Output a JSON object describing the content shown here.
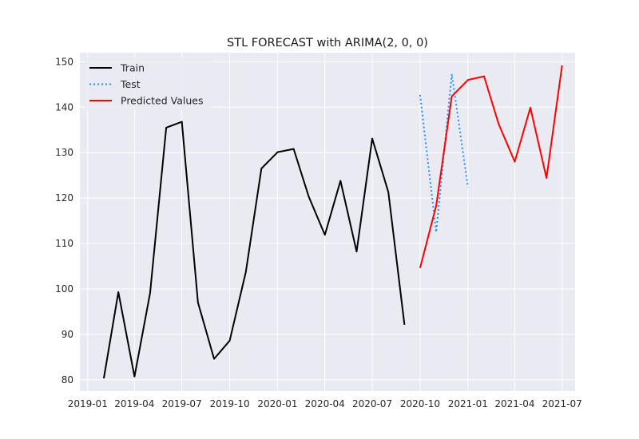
{
  "chart_data": {
    "type": "line",
    "title": "STL FORECAST with ARIMA(2, 0, 0)",
    "xlabel": "",
    "ylabel": "",
    "ylim": [
      77.5,
      152
    ],
    "xlim": [
      "2018-12-17",
      "2021-07-26"
    ],
    "grid": true,
    "legend_position": "top-left",
    "x_ticks": [
      "2019-01",
      "2019-04",
      "2019-07",
      "2019-10",
      "2020-01",
      "2020-04",
      "2020-07",
      "2020-10",
      "2021-01",
      "2021-04",
      "2021-07"
    ],
    "y_ticks": [
      80,
      90,
      100,
      110,
      120,
      130,
      140,
      150
    ],
    "series": [
      {
        "name": "Train",
        "color": "#000000",
        "style": "solid",
        "x": [
          "2019-02-01",
          "2019-03-01",
          "2019-04-01",
          "2019-05-01",
          "2019-06-01",
          "2019-07-01",
          "2019-08-01",
          "2019-09-01",
          "2019-10-01",
          "2019-11-01",
          "2019-12-01",
          "2020-01-01",
          "2020-02-01",
          "2020-03-01",
          "2020-04-01",
          "2020-05-01",
          "2020-06-01",
          "2020-07-01",
          "2020-08-01",
          "2020-09-01"
        ],
        "values": [
          80.3,
          99.3,
          80.7,
          99.1,
          135.5,
          136.8,
          97.0,
          84.6,
          88.6,
          103.7,
          126.5,
          130.1,
          130.8,
          120.3,
          111.9,
          123.8,
          108.2,
          133.1,
          121.3,
          92.1
        ]
      },
      {
        "name": "Test",
        "color": "#1f8fff",
        "style": "dotted",
        "x": [
          "2020-10-01",
          "2020-11-01",
          "2020-12-01",
          "2021-01-01"
        ],
        "values": [
          142.7,
          112.5,
          147.3,
          122.4
        ]
      },
      {
        "name": "Predicted Values",
        "color": "#ff0000",
        "style": "solid",
        "x": [
          "2020-10-01",
          "2020-11-01",
          "2020-12-01",
          "2021-01-01",
          "2021-02-01",
          "2021-03-01",
          "2021-04-01",
          "2021-05-01",
          "2021-06-01",
          "2021-07-01"
        ],
        "values": [
          104.6,
          118.3,
          142.4,
          146.0,
          146.8,
          136.3,
          128.0,
          139.9,
          124.4,
          149.2
        ]
      }
    ],
    "colors": {
      "background": "#eaeaf2",
      "grid": "#ffffff",
      "text": "#262626"
    }
  }
}
